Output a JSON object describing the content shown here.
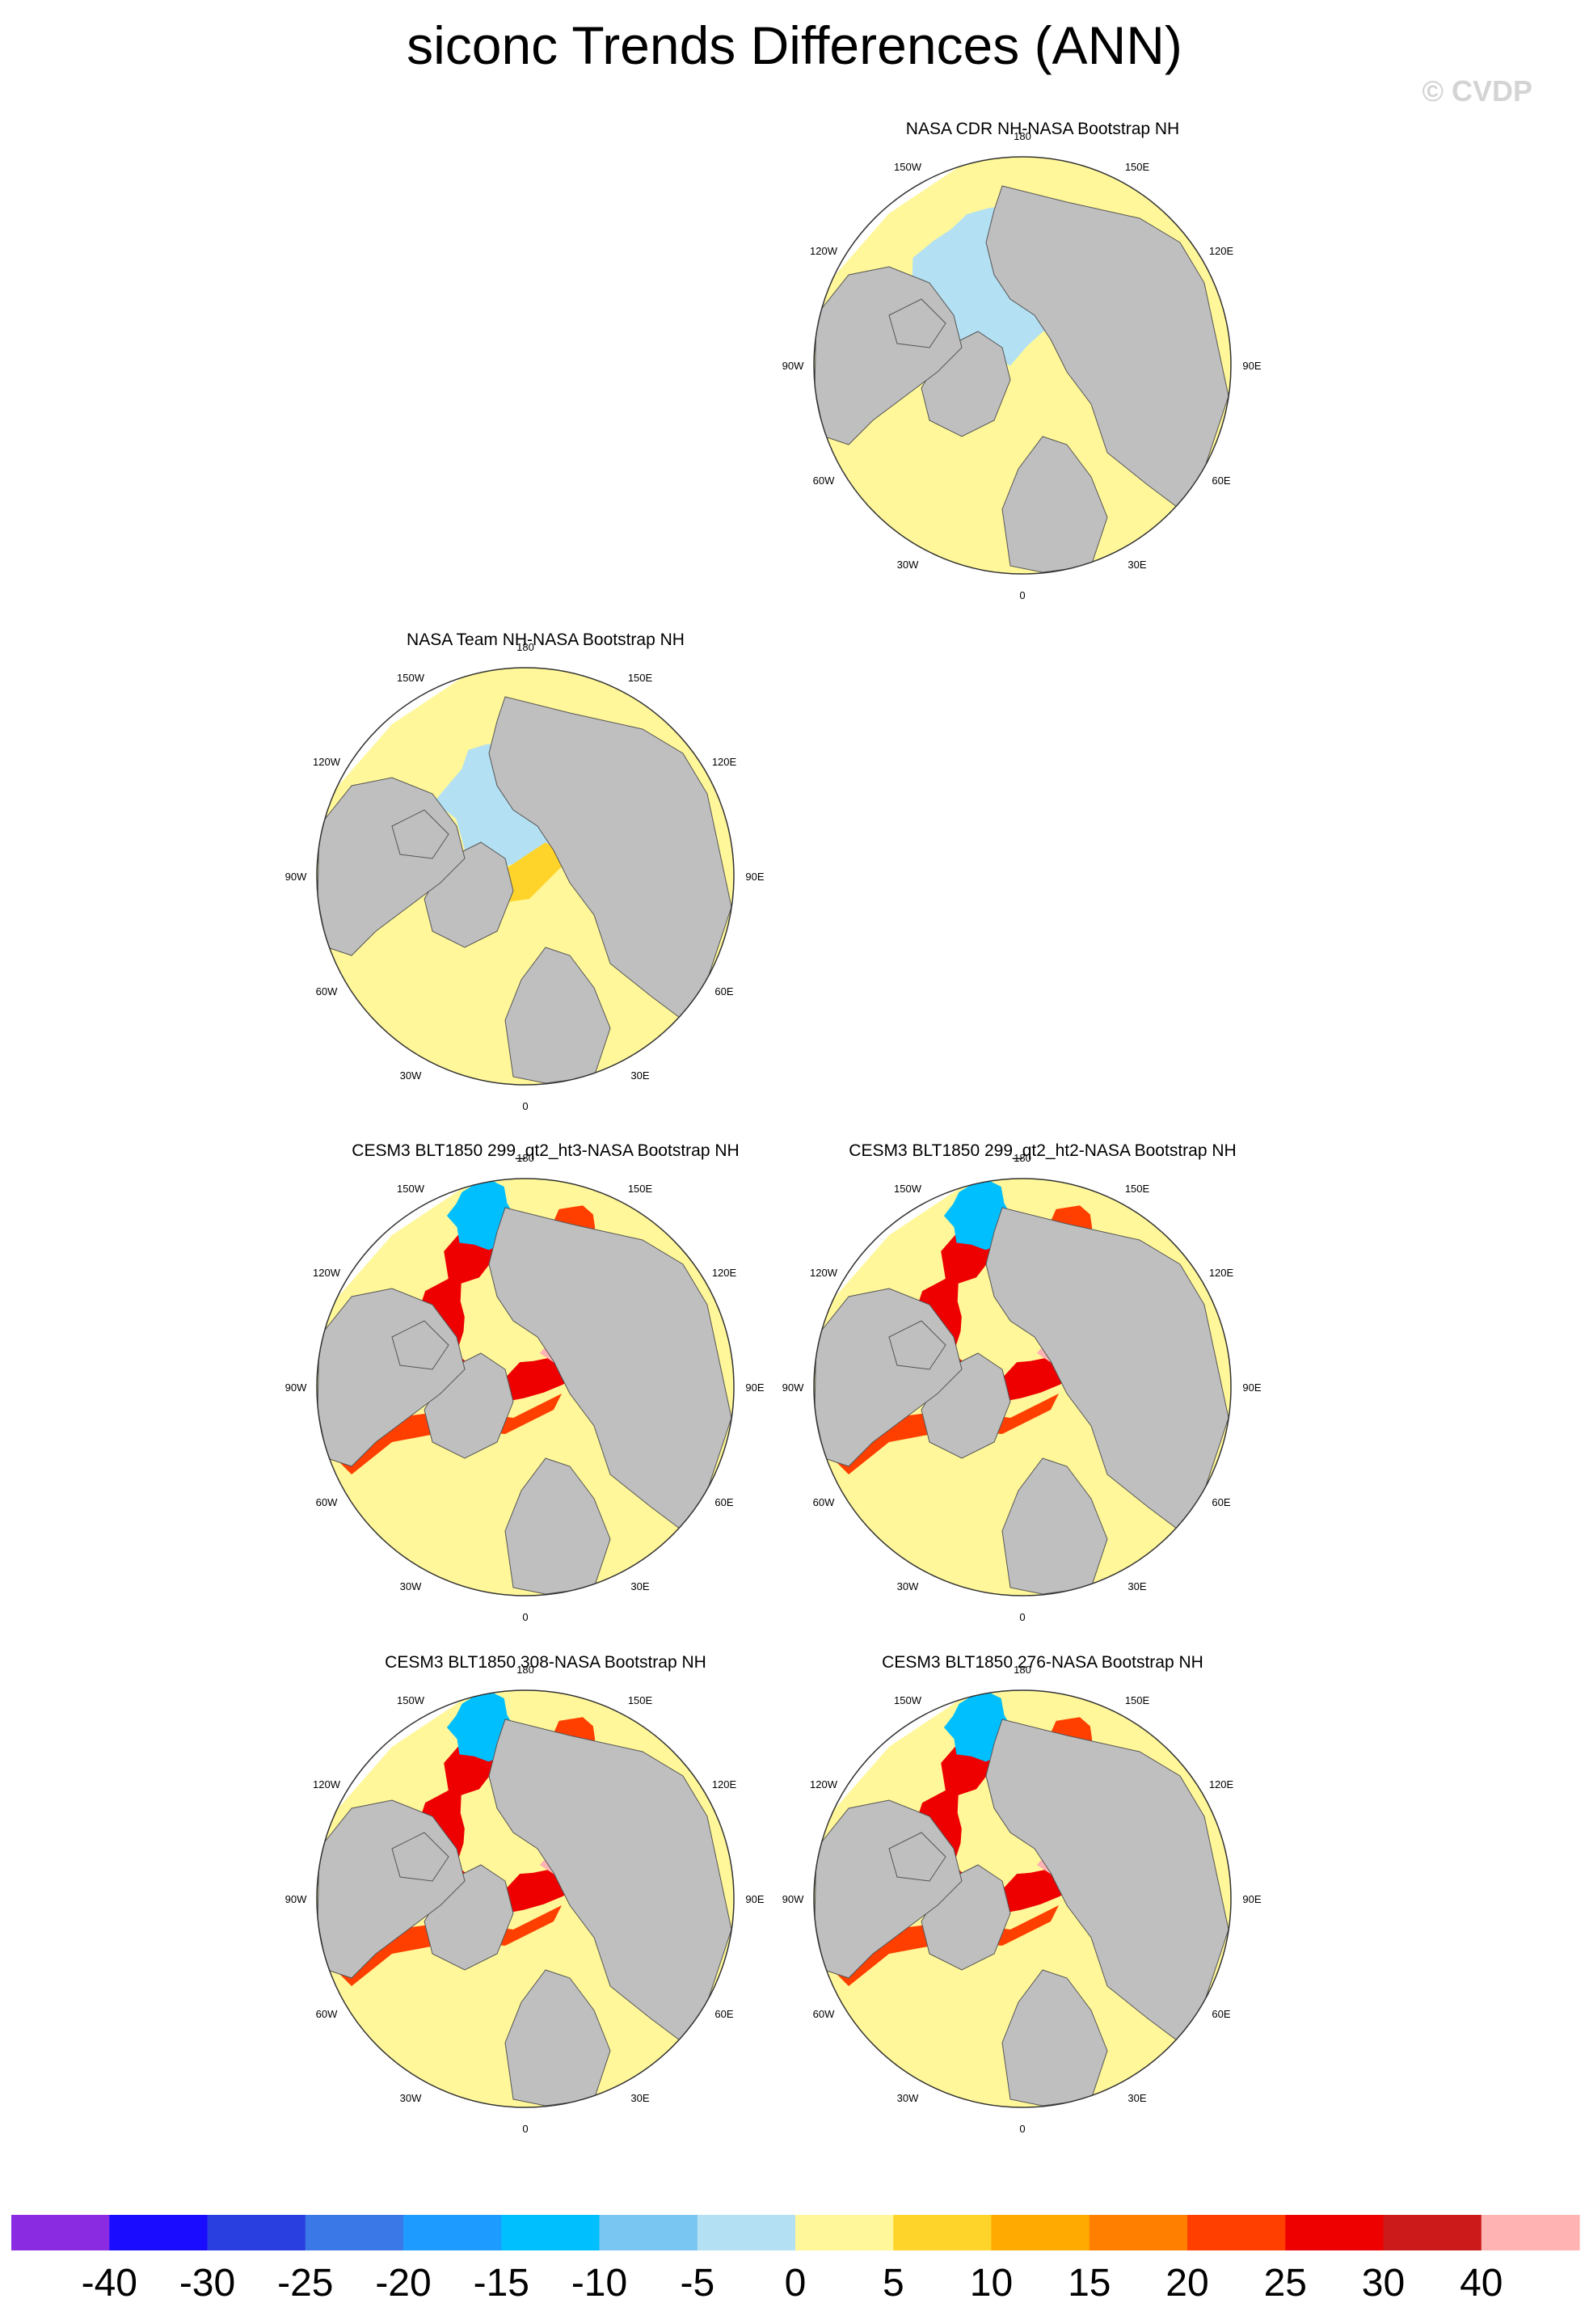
{
  "figure": {
    "title": "siconc Trends Differences (ANN)",
    "watermark": "© CVDP"
  },
  "panels": [
    {
      "id": "cdr",
      "title": "NASA CDR NH-NASA Bootstrap NH",
      "pattern": "obs1"
    },
    {
      "id": "team",
      "title": "NASA Team NH-NASA Bootstrap NH",
      "pattern": "obs2"
    },
    {
      "id": "ht3",
      "title": "CESM3 BLT1850 299_qt2_ht3-NASA Bootstrap NH",
      "pattern": "model"
    },
    {
      "id": "ht2",
      "title": "CESM3 BLT1850 299_qt2_ht2-NASA Bootstrap NH",
      "pattern": "model"
    },
    {
      "id": "r308",
      "title": "CESM3 BLT1850 308-NASA Bootstrap NH",
      "pattern": "model"
    },
    {
      "id": "r276",
      "title": "CESM3 BLT1850 276-NASA Bootstrap NH",
      "pattern": "model"
    }
  ],
  "longitude_labels": [
    "180",
    "150E",
    "120E",
    "90E",
    "60E",
    "30E",
    "0",
    "30W",
    "60W",
    "90W",
    "120W",
    "150W"
  ],
  "colorbar": {
    "colors": [
      "#8a2be2",
      "#1a0dff",
      "#2a3fe0",
      "#3a78e8",
      "#1e9bff",
      "#00bfff",
      "#79c6f2",
      "#b3e0f2",
      "#fff799",
      "#ffd42a",
      "#ffaa00",
      "#ff7f00",
      "#ff3f00",
      "#ee0000",
      "#cc1a1a",
      "#ffb3b3"
    ],
    "labels": [
      "-40",
      "-30",
      "-25",
      "-20",
      "-15",
      "-10",
      "-5",
      "0",
      "5",
      "10",
      "15",
      "20",
      "25",
      "30",
      "40"
    ]
  },
  "map_colors": {
    "land": "#bfbfbf",
    "no_data": "#ffffff"
  }
}
